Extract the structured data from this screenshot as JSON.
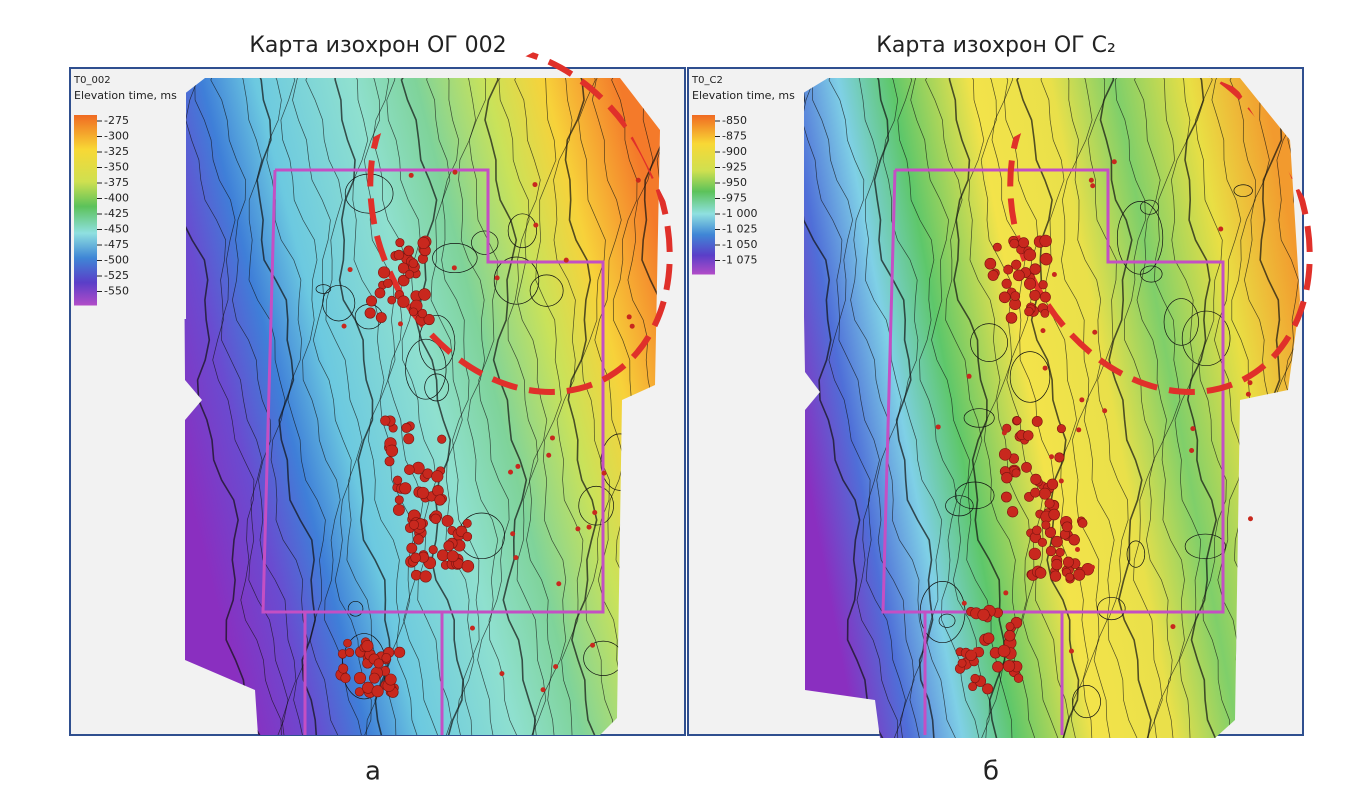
{
  "panels": [
    {
      "title": "Карта изохрон ОГ 002",
      "legend": {
        "name": "T0_002",
        "unit": "Elevation time, ms",
        "labels": [
          "-275",
          "-300",
          "-325",
          "-350",
          "-375",
          "-400",
          "-425",
          "-450",
          "-475",
          "-500",
          "-525",
          "-550"
        ]
      },
      "caption": "а"
    },
    {
      "title": "Карта изохрон ОГ C₂",
      "legend": {
        "name": "T0_C2",
        "unit": "Elevation time, ms",
        "labels": [
          "-850",
          "-875",
          "-900",
          "-925",
          "-950",
          "-975",
          "-1 000",
          "-1 025",
          "-1 050",
          "-1 075"
        ]
      },
      "caption": "б"
    }
  ]
}
